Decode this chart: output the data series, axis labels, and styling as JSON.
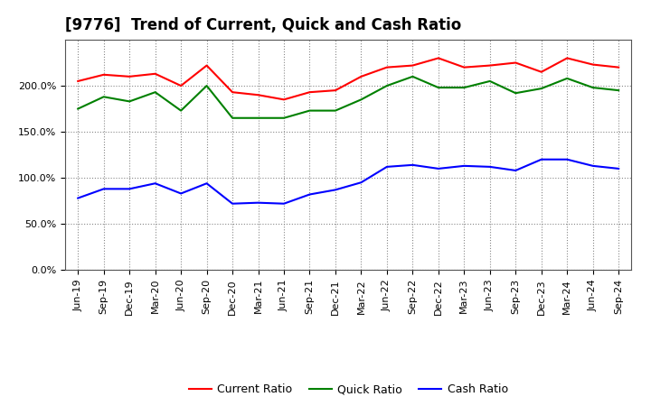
{
  "title": "[9776]  Trend of Current, Quick and Cash Ratio",
  "labels": [
    "Jun-19",
    "Sep-19",
    "Dec-19",
    "Mar-20",
    "Jun-20",
    "Sep-20",
    "Dec-20",
    "Mar-21",
    "Jun-21",
    "Sep-21",
    "Dec-21",
    "Mar-22",
    "Jun-22",
    "Sep-22",
    "Dec-22",
    "Mar-23",
    "Jun-23",
    "Sep-23",
    "Dec-23",
    "Mar-24",
    "Jun-24",
    "Sep-24"
  ],
  "current_ratio": [
    205,
    212,
    210,
    213,
    200,
    222,
    193,
    190,
    185,
    193,
    195,
    210,
    220,
    222,
    230,
    220,
    222,
    225,
    215,
    230,
    223,
    220
  ],
  "quick_ratio": [
    175,
    188,
    183,
    193,
    173,
    200,
    165,
    165,
    165,
    173,
    173,
    185,
    200,
    210,
    198,
    198,
    205,
    192,
    197,
    208,
    198,
    195
  ],
  "cash_ratio": [
    78,
    88,
    88,
    94,
    83,
    94,
    72,
    73,
    72,
    82,
    87,
    95,
    112,
    114,
    110,
    113,
    112,
    108,
    120,
    120,
    113,
    110
  ],
  "current_color": "#FF0000",
  "quick_color": "#008000",
  "cash_color": "#0000FF",
  "ylim": [
    0,
    250
  ],
  "yticks": [
    0,
    50,
    100,
    150,
    200
  ],
  "bg_color": "#FFFFFF",
  "plot_bg_color": "#FFFFFF",
  "grid_color": "#888888",
  "legend_labels": [
    "Current Ratio",
    "Quick Ratio",
    "Cash Ratio"
  ],
  "title_fontsize": 12,
  "tick_fontsize": 8,
  "legend_fontsize": 9,
  "linewidth": 1.5
}
